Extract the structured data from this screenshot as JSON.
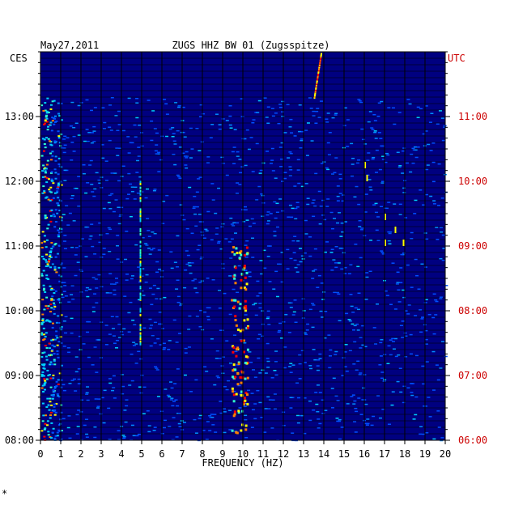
{
  "header": {
    "date": "May27,2011",
    "station": "ZUGS HHZ BW 01 (Zugsspitze)",
    "left_timezone": "CES",
    "right_timezone": "UTC"
  },
  "footer": {
    "mark": "*"
  },
  "colors": {
    "background": "#000080",
    "grid": "#000000",
    "utc_text": "#cc0000",
    "text": "#000000"
  },
  "chart_data": {
    "type": "heatmap",
    "title": "ZUGS HHZ BW 01 (Zugsspitze)",
    "date": "May27,2011",
    "xlabel": "FREQUENCY (HZ)",
    "ylabel_left": "CES",
    "ylabel_right": "UTC",
    "x_range": [
      0,
      20
    ],
    "x_ticks": [
      "0",
      "1",
      "2",
      "3",
      "4",
      "5",
      "6",
      "7",
      "8",
      "9",
      "10",
      "11",
      "12",
      "13",
      "14",
      "15",
      "16",
      "17",
      "18",
      "19",
      "20"
    ],
    "y_range_ces_hours": [
      8,
      14
    ],
    "y_ticks_left": [
      "08:00",
      "09:00",
      "10:00",
      "11:00",
      "12:00",
      "13:00"
    ],
    "y_ticks_right": [
      "06:00",
      "07:00",
      "08:00",
      "09:00",
      "10:00",
      "11:00"
    ],
    "grid": true,
    "colormap": "jet (low = dark blue, high = red)",
    "features": [
      {
        "note": "strong low-frequency energy",
        "freq_hz": [
          0,
          1
        ],
        "level": "high"
      },
      {
        "note": "narrow line",
        "freq_hz": 4.9,
        "level": "medium"
      },
      {
        "note": "intermittent bursts",
        "freq_hz": [
          9.4,
          10.2
        ],
        "level": "high"
      },
      {
        "note": "drifting line near end of window",
        "freq_hz": [
          13.5,
          13.9
        ],
        "level": "high"
      },
      {
        "note": "short spikes",
        "freq_hz": [
          16,
          18
        ],
        "level": "medium"
      }
    ]
  }
}
